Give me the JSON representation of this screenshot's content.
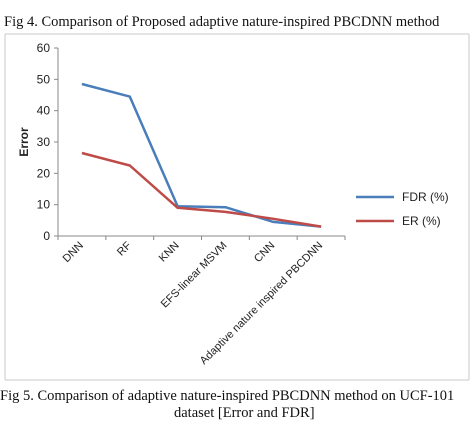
{
  "captions": {
    "fig4": "Fig 4. Comparison of Proposed adaptive nature-inspired PBCDNN method",
    "fig5_line1": "Fig 5. Comparison of adaptive nature-inspired PBCDNN method on UCF-101",
    "fig5_line2": "dataset [Error and FDR]"
  },
  "chart_data": {
    "type": "line",
    "categories": [
      "DNN",
      "RF",
      "KNN",
      "EFS-linear MSVM",
      "CNN",
      "Adaptive nature inspired PBCDNN"
    ],
    "series": [
      {
        "name": "FDR (%)",
        "values": [
          48.5,
          44.5,
          9.5,
          9.2,
          4.5,
          3.0
        ],
        "color": "#4a7ebb"
      },
      {
        "name": "ER (%)",
        "values": [
          26.5,
          22.5,
          9.0,
          7.7,
          5.5,
          3.0
        ],
        "color": "#be4b48"
      }
    ],
    "ylabel": "Error",
    "xlabel": "",
    "ylim": [
      0,
      60
    ],
    "yticks": [
      0,
      10,
      20,
      30,
      40,
      50,
      60
    ],
    "grid": false,
    "legend": "right"
  }
}
